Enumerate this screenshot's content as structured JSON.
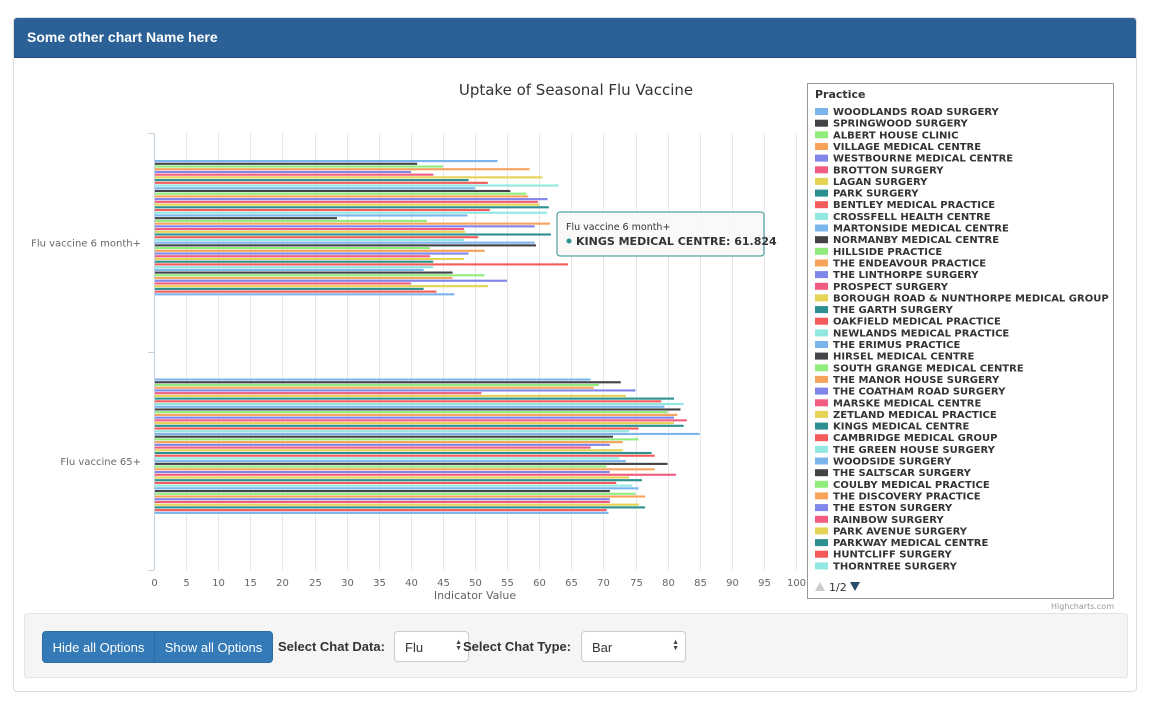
{
  "panel": {
    "title": "Some other chart Name here"
  },
  "chart_data": {
    "type": "bar",
    "orientation": "horizontal",
    "title": "Uptake of Seasonal Flu Vaccine",
    "xlabel": "Indicator Value",
    "xlim": [
      0,
      100
    ],
    "xticks": [
      "0",
      "5",
      "10",
      "15",
      "20",
      "25",
      "30",
      "35",
      "40",
      "45",
      "50",
      "55",
      "60",
      "65",
      "70",
      "75",
      "80",
      "85",
      "90",
      "95",
      "100"
    ],
    "categories": [
      "Flu vaccine 6 month+",
      "Flu vaccine 65+"
    ],
    "legend_title": "Practice",
    "legend_position": "right",
    "legend_pager": "1/2",
    "credit": "Highcharts.com",
    "tooltip": {
      "header": "Flu vaccine 6 month+",
      "text": "KINGS MEDICAL CENTRE: 61.824"
    },
    "series": [
      {
        "name": "WOODLANDS ROAD SURGERY",
        "color": "#7cb5ec",
        "values": [
          53.5,
          68
        ]
      },
      {
        "name": "SPRINGWOOD SURGERY",
        "color": "#434348",
        "values": [
          41,
          72.7
        ]
      },
      {
        "name": "ALBERT HOUSE CLINIC",
        "color": "#90ed7d",
        "values": [
          45,
          69.3
        ]
      },
      {
        "name": "VILLAGE MEDICAL CENTRE",
        "color": "#f7a35c",
        "values": [
          58.5,
          68.5
        ]
      },
      {
        "name": "WESTBOURNE MEDICAL CENTRE",
        "color": "#8085e9",
        "values": [
          40,
          75
        ]
      },
      {
        "name": "BROTTON SURGERY",
        "color": "#f15c80",
        "values": [
          43.5,
          51
        ]
      },
      {
        "name": "LAGAN SURGERY",
        "color": "#e4d354",
        "values": [
          60.5,
          73.5
        ]
      },
      {
        "name": "PARK SURGERY",
        "color": "#2b908f",
        "values": [
          49,
          81
        ]
      },
      {
        "name": "BENTLEY MEDICAL PRACTICE",
        "color": "#f45b5b",
        "values": [
          52,
          79
        ]
      },
      {
        "name": "CROSSFELL HEALTH CENTRE",
        "color": "#91e8e1",
        "values": [
          63,
          82.5
        ]
      },
      {
        "name": "MARTONSIDE MEDICAL CENTRE",
        "color": "#7cb5ec",
        "values": [
          50,
          79.5
        ]
      },
      {
        "name": "NORMANBY MEDICAL CENTRE",
        "color": "#434348",
        "values": [
          55.5,
          82
        ]
      },
      {
        "name": "HILLSIDE PRACTICE",
        "color": "#90ed7d",
        "values": [
          58,
          80
        ]
      },
      {
        "name": "THE ENDEAVOUR PRACTICE",
        "color": "#f7a35c",
        "values": [
          58.3,
          81.5
        ]
      },
      {
        "name": "THE LINTHORPE SURGERY",
        "color": "#8085e9",
        "values": [
          61.3,
          81
        ]
      },
      {
        "name": "PROSPECT SURGERY",
        "color": "#f15c80",
        "values": [
          59.8,
          83
        ]
      },
      {
        "name": "BOROUGH ROAD & NUNTHORPE MEDICAL GROUP",
        "color": "#e4d354",
        "values": [
          60,
          81
        ]
      },
      {
        "name": "THE GARTH SURGERY",
        "color": "#2b908f",
        "values": [
          61.5,
          82.5
        ]
      },
      {
        "name": "OAKFIELD MEDICAL PRACTICE",
        "color": "#f45b5b",
        "values": [
          52.3,
          75.5
        ]
      },
      {
        "name": "NEWLANDS MEDICAL PRACTICE",
        "color": "#91e8e1",
        "values": [
          61.2,
          74
        ]
      },
      {
        "name": "THE ERIMUS PRACTICE",
        "color": "#7cb5ec",
        "values": [
          48.8,
          85
        ]
      },
      {
        "name": "HIRSEL MEDICAL CENTRE",
        "color": "#434348",
        "values": [
          28.5,
          71.5
        ]
      },
      {
        "name": "SOUTH GRANGE MEDICAL CENTRE",
        "color": "#90ed7d",
        "values": [
          42.5,
          75.5
        ]
      },
      {
        "name": "THE MANOR HOUSE SURGERY",
        "color": "#f7a35c",
        "values": [
          61.7,
          73
        ]
      },
      {
        "name": "THE COATHAM ROAD SURGERY",
        "color": "#8085e9",
        "values": [
          59.3,
          71
        ]
      },
      {
        "name": "MARSKE MEDICAL CENTRE",
        "color": "#f15c80",
        "values": [
          48.3,
          68
        ]
      },
      {
        "name": "ZETLAND MEDICAL PRACTICE",
        "color": "#e4d354",
        "values": [
          48.5,
          73
        ]
      },
      {
        "name": "KINGS MEDICAL CENTRE",
        "color": "#2b908f",
        "values": [
          61.824,
          77.5
        ]
      },
      {
        "name": "CAMBRIDGE MEDICAL GROUP",
        "color": "#f45b5b",
        "values": [
          50.5,
          78
        ]
      },
      {
        "name": "THE GREEN HOUSE SURGERY",
        "color": "#91e8e1",
        "values": [
          48.3,
          72.5
        ]
      },
      {
        "name": "WOODSIDE SURGERY",
        "color": "#7cb5ec",
        "values": [
          59.3,
          73.5
        ]
      },
      {
        "name": "THE SALTSCAR SURGERY",
        "color": "#434348",
        "values": [
          59.5,
          80
        ]
      },
      {
        "name": "COULBY MEDICAL PRACTICE",
        "color": "#90ed7d",
        "values": [
          43,
          70.5
        ]
      },
      {
        "name": "THE DISCOVERY PRACTICE",
        "color": "#f7a35c",
        "values": [
          51.5,
          78
        ]
      },
      {
        "name": "THE ESTON SURGERY",
        "color": "#8085e9",
        "values": [
          49,
          71
        ]
      },
      {
        "name": "RAINBOW SURGERY",
        "color": "#f15c80",
        "values": [
          43,
          81.3
        ]
      },
      {
        "name": "PARK AVENUE SURGERY",
        "color": "#e4d354",
        "values": [
          48.3,
          74
        ]
      },
      {
        "name": "PARKWAY MEDICAL CENTRE",
        "color": "#2b908f",
        "values": [
          43.5,
          76
        ]
      },
      {
        "name": "HUNTCLIFF SURGERY",
        "color": "#f45b5b",
        "values": [
          64.5,
          72
        ]
      },
      {
        "name": "THORNTREE SURGERY",
        "color": "#91e8e1",
        "values": [
          43.5,
          74.5
        ]
      },
      {
        "name": "",
        "color": "#7cb5ec",
        "values": [
          42,
          75.5
        ]
      },
      {
        "name": "",
        "color": "#434348",
        "values": [
          46.5,
          71
        ]
      },
      {
        "name": "",
        "color": "#90ed7d",
        "values": [
          51.5,
          75
        ]
      },
      {
        "name": "",
        "color": "#f7a35c",
        "values": [
          46.5,
          76.5
        ]
      },
      {
        "name": "",
        "color": "#8085e9",
        "values": [
          55,
          71
        ]
      },
      {
        "name": "",
        "color": "#f15c80",
        "values": [
          40,
          71
        ]
      },
      {
        "name": "",
        "color": "#e4d354",
        "values": [
          52,
          75.5
        ]
      },
      {
        "name": "",
        "color": "#2b908f",
        "values": [
          42,
          76.5
        ]
      },
      {
        "name": "",
        "color": "#f45b5b",
        "values": [
          44,
          70.5
        ]
      },
      {
        "name": "",
        "color": "#7cb5ec",
        "values": [
          46.8,
          70.8
        ]
      }
    ]
  },
  "controls": {
    "hide_label": "Hide all Options",
    "show_label": "Show all Options",
    "data_label": "Select Chat Data:",
    "data_value": "Flu",
    "type_label": "Select Chat Type:",
    "type_value": "Bar"
  }
}
